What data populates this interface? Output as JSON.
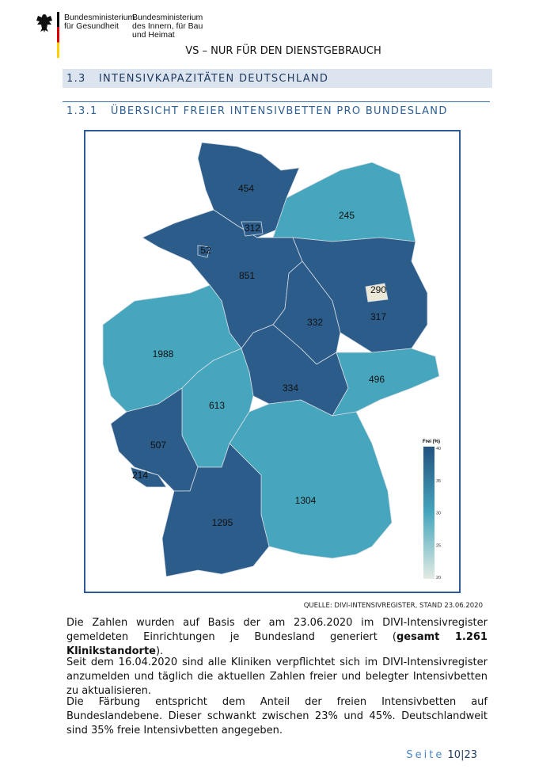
{
  "header": {
    "ministry1": [
      "Bundesministerium",
      "für Gesundheit"
    ],
    "ministry2": [
      "Bundesministerium",
      "des Innern, für Bau",
      "und Heimat"
    ],
    "classification": "VS – NUR FÜR DEN DIENSTGEBRAUCH"
  },
  "section": {
    "number": "1.3",
    "title": "INTENSIVKAPAZITÄTEN DEUTSCHLAND"
  },
  "subsection": {
    "number": "1.3.1",
    "title": "ÜBERSICHT FREIER INTENSIVBETTEN PRO BUNDESLAND"
  },
  "map": {
    "legend": {
      "title": "Frei (%)",
      "ticks": [
        "40",
        "35",
        "30",
        "25",
        "20"
      ],
      "color_low": "#e3ebe3",
      "color_mid": "#45a6bd",
      "color_high": "#24527f"
    },
    "regions": [
      {
        "value": "454",
        "color": "#2b5c8a"
      },
      {
        "value": "245",
        "color": "#46a6bd"
      },
      {
        "value": "851",
        "color": "#2b5c8a"
      },
      {
        "value": "312",
        "color": "#2b5c8a"
      },
      {
        "value": "52",
        "color": "#2b5c8a"
      },
      {
        "value": "317",
        "color": "#2b5c8a"
      },
      {
        "value": "290",
        "color": "#ebe8d7"
      },
      {
        "value": "332",
        "color": "#2b5c8a"
      },
      {
        "value": "496",
        "color": "#46a6bd"
      },
      {
        "value": "334",
        "color": "#2b5c8a"
      },
      {
        "value": "1988",
        "color": "#46a6bd"
      },
      {
        "value": "613",
        "color": "#46a6bd"
      },
      {
        "value": "507",
        "color": "#2b5c8a"
      },
      {
        "value": "214",
        "color": "#2b5c8a"
      },
      {
        "value": "1304",
        "color": "#46a6bd"
      },
      {
        "value": "1295",
        "color": "#2b5c8a"
      }
    ]
  },
  "source": "QUELLE: DIVI-INTENSIVREGISTER, STAND 23.06.2020",
  "paragraphs": {
    "p1_a": "Die Zahlen wurden auf Basis der am 23.06.2020 im DIVI-Intensivregister gemeldeten Einrichtungen je Bundesland generiert (",
    "p1_bold": "gesamt 1.261 Klinikstandorte",
    "p1_c": ").",
    "p2": "Seit dem 16.04.2020 sind alle Kliniken verpflichtet sich im DIVI-Intensivregister anzumelden und täglich die aktuellen Zahlen freier und belegter Intensivbetten zu aktualisieren.",
    "p3": "Die Färbung entspricht dem Anteil der freien Intensivbetten auf Bundeslandebene. Dieser schwankt zwischen 23% und 45%. Deutschlandweit sind 35% freie Intensivbetten angegeben."
  },
  "footer": {
    "seite": "Seite",
    "page": "10",
    "total": "23"
  }
}
